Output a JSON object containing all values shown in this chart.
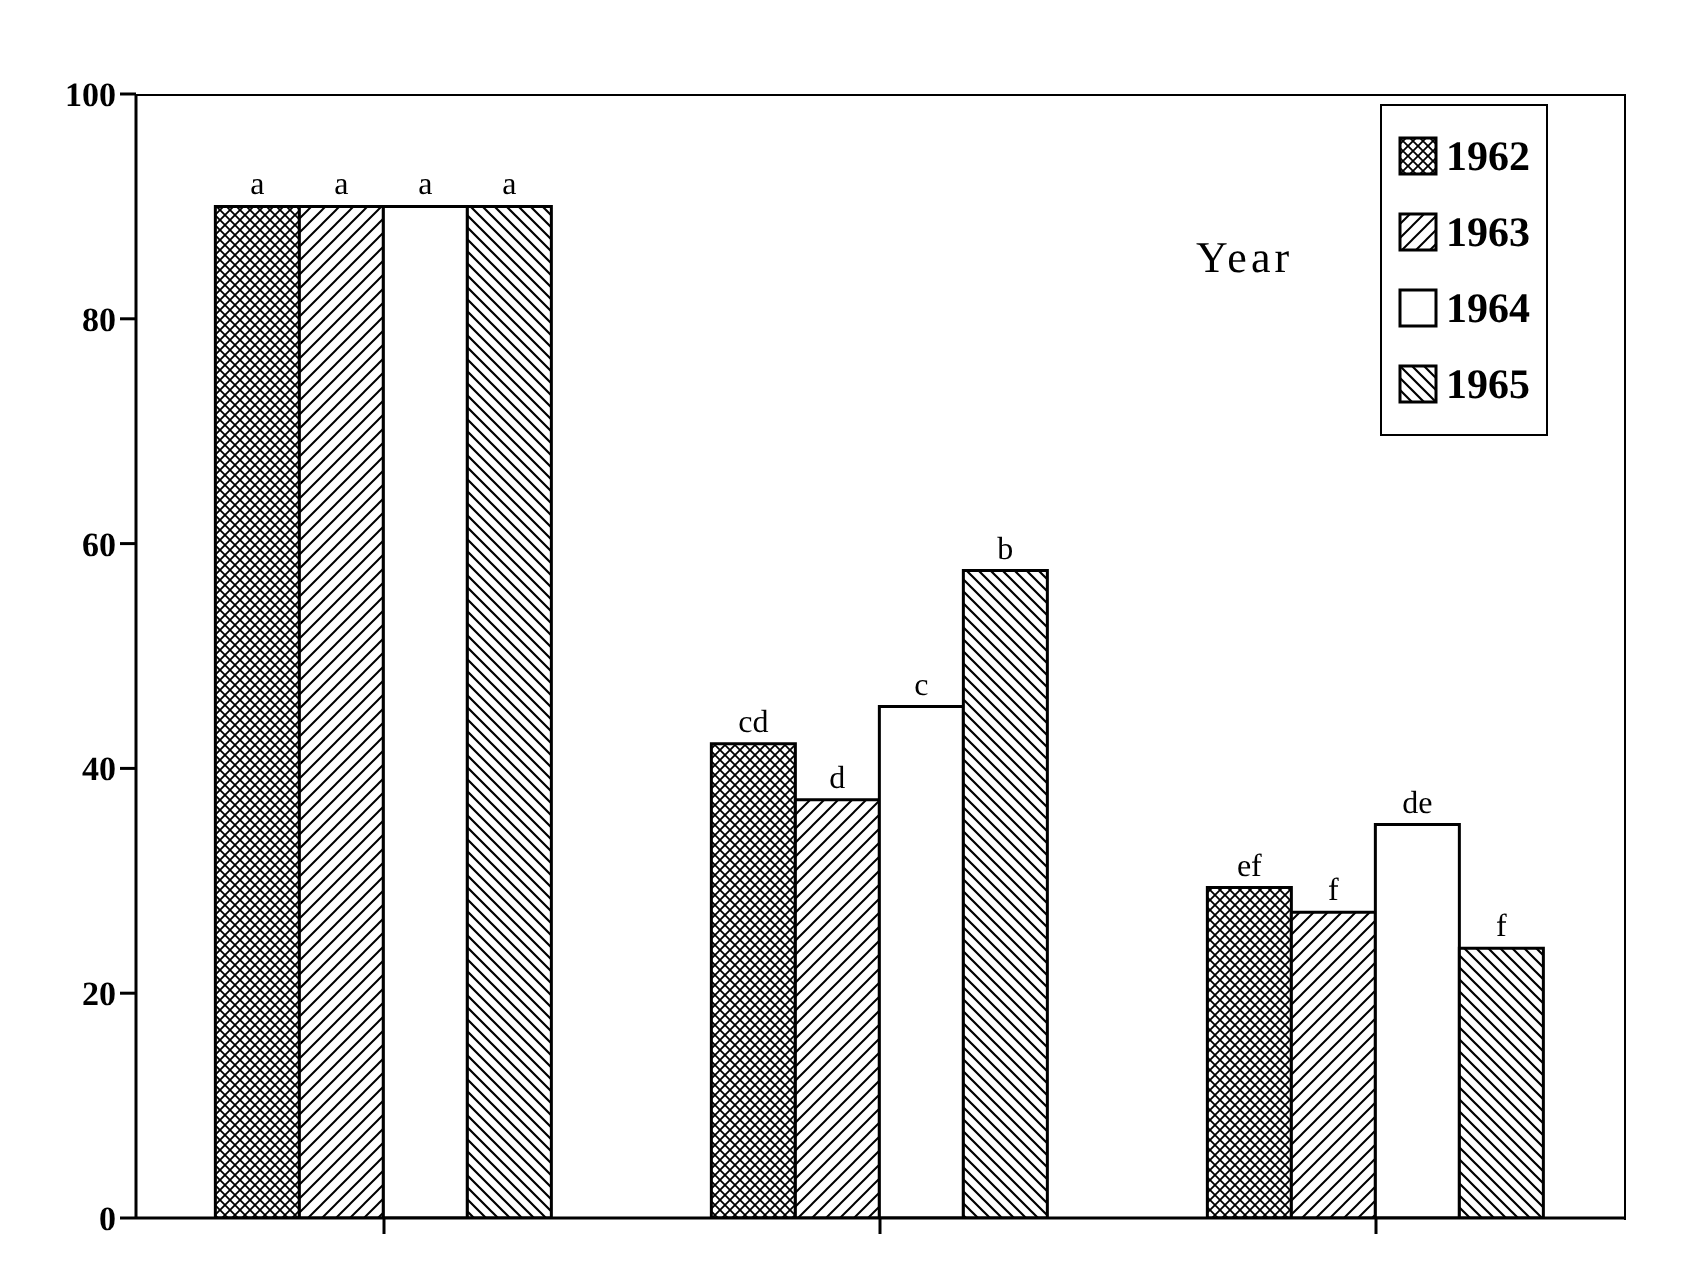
{
  "chart_data": {
    "type": "bar",
    "categories": [
      null,
      null,
      null
    ],
    "series": [
      {
        "name": "1962",
        "color": "#000000",
        "values": [
          90,
          42.2,
          29.4
        ],
        "value_labels": [
          "a",
          "cd",
          "ef"
        ]
      },
      {
        "name": "1963",
        "color": "#000000",
        "values": [
          90,
          37.2,
          27.2
        ],
        "value_labels": [
          "a",
          "d",
          "f"
        ]
      },
      {
        "name": "1964",
        "color": "#000000",
        "values": [
          90,
          45.5,
          35
        ],
        "value_labels": [
          "a",
          "c",
          "de"
        ]
      },
      {
        "name": "1965",
        "color": "#000000",
        "values": [
          90,
          57.6,
          24
        ],
        "value_labels": [
          "a",
          "b",
          "f"
        ]
      }
    ],
    "ylim": [
      0,
      100
    ],
    "yticks": [
      0,
      20,
      40,
      60,
      80,
      100
    ],
    "legend": "top right",
    "legend_title": "Year",
    "grid": false
  }
}
